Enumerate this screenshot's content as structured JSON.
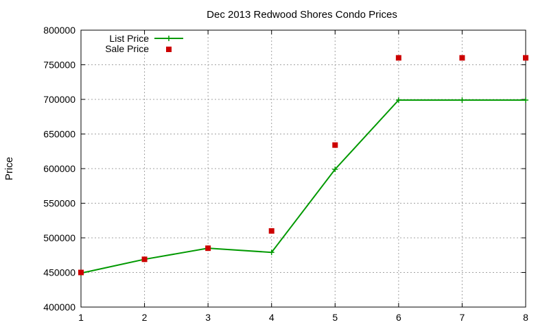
{
  "chart_data": {
    "type": "line",
    "title": "Dec 2013 Redwood Shores Condo Prices",
    "xlabel": "",
    "ylabel": "Price",
    "xlim": [
      1,
      8
    ],
    "ylim": [
      400000,
      800000
    ],
    "xticks": [
      1,
      2,
      3,
      4,
      5,
      6,
      7,
      8
    ],
    "yticks": [
      400000,
      450000,
      500000,
      550000,
      600000,
      650000,
      700000,
      750000,
      800000
    ],
    "grid": true,
    "legend_position": "top-left",
    "series": [
      {
        "name": "List Price",
        "style": "line-with-plus-markers",
        "color": "#009900",
        "x": [
          1,
          2,
          3,
          4,
          5,
          6,
          7,
          8
        ],
        "y": [
          449000,
          469000,
          485000,
          479000,
          599000,
          699000,
          699000,
          699000
        ]
      },
      {
        "name": "Sale Price",
        "style": "square-markers",
        "color": "#cc0000",
        "x": [
          1,
          2,
          3,
          4,
          5,
          6,
          7,
          8
        ],
        "y": [
          450000,
          469000,
          485000,
          510000,
          634000,
          760000,
          760000,
          760000
        ]
      }
    ]
  }
}
